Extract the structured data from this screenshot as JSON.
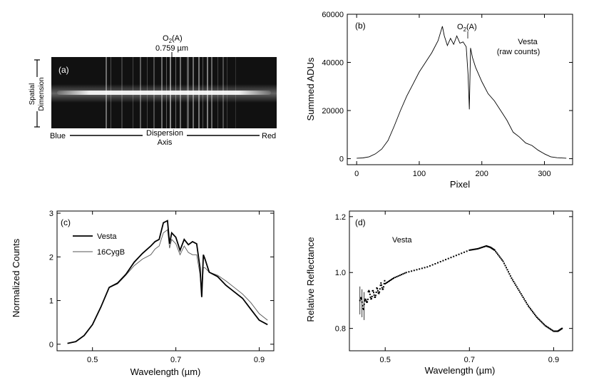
{
  "chart_data": [
    {
      "panel": "(a)",
      "type": "other",
      "image": "2-D spectrum (spatial dimension vs dispersion axis)",
      "labels": {
        "feature": "O2(A)",
        "feature_value": "0.759 µm",
        "left": "Blue",
        "right": "Red",
        "dispersion": [
          "Dispersion",
          "Axis"
        ],
        "spatial": [
          "Spatial",
          "Dimension"
        ]
      },
      "colors": {
        "background": "#111111",
        "trace": "#ffffff",
        "lines": "#bdbdbd"
      }
    },
    {
      "panel": "(b)",
      "type": "line",
      "xlabel": "Pixel",
      "ylabel": "Summed ADUs",
      "xlim": [
        -15,
        345
      ],
      "ylim": [
        -2500,
        60000
      ],
      "xticks": [
        0,
        100,
        200,
        300
      ],
      "yticks": [
        0,
        20000,
        40000,
        60000
      ],
      "annotations": [
        {
          "text": "O2(A)",
          "x": 180
        },
        {
          "text": "Vesta",
          "text2": "(raw counts)"
        }
      ],
      "x": [
        0,
        10,
        20,
        30,
        40,
        50,
        60,
        70,
        80,
        90,
        100,
        110,
        120,
        130,
        137,
        140,
        145,
        150,
        155,
        160,
        165,
        170,
        175,
        178,
        180,
        182,
        185,
        190,
        200,
        210,
        220,
        230,
        240,
        250,
        260,
        270,
        280,
        290,
        300,
        310,
        320,
        335
      ],
      "y": [
        200,
        300,
        800,
        2000,
        4000,
        7500,
        13500,
        20000,
        26000,
        31000,
        36000,
        40000,
        44000,
        49000,
        55000,
        51000,
        47000,
        50000,
        47500,
        51000,
        48000,
        48500,
        46500,
        35000,
        20500,
        46000,
        42000,
        38000,
        32000,
        27000,
        24000,
        20000,
        16000,
        11000,
        9000,
        6500,
        5500,
        3500,
        2000,
        800,
        400,
        200
      ]
    },
    {
      "panel": "(c)",
      "type": "line",
      "xlabel": "Wavelength (µm)",
      "ylabel": "Normalized Counts",
      "xlim": [
        0.415,
        0.935
      ],
      "ylim": [
        -0.15,
        3.05
      ],
      "xticks": [
        0.5,
        0.7,
        0.9
      ],
      "yticks": [
        0,
        1,
        2,
        3
      ],
      "series": [
        {
          "name": "Vesta",
          "color": "#000000",
          "width": 1.8,
          "x": [
            0.44,
            0.46,
            0.48,
            0.5,
            0.52,
            0.54,
            0.56,
            0.58,
            0.6,
            0.62,
            0.64,
            0.65,
            0.66,
            0.67,
            0.68,
            0.685,
            0.69,
            0.7,
            0.71,
            0.72,
            0.73,
            0.74,
            0.75,
            0.758,
            0.762,
            0.766,
            0.77,
            0.78,
            0.8,
            0.82,
            0.84,
            0.86,
            0.88,
            0.9,
            0.92
          ],
          "y": [
            0.02,
            0.06,
            0.2,
            0.45,
            0.85,
            1.3,
            1.4,
            1.6,
            1.88,
            2.08,
            2.25,
            2.35,
            2.4,
            2.78,
            2.83,
            2.3,
            2.55,
            2.45,
            2.15,
            2.4,
            2.28,
            2.35,
            2.3,
            1.75,
            1.08,
            2.05,
            1.95,
            1.65,
            1.55,
            1.35,
            1.2,
            1.05,
            0.8,
            0.55,
            0.45
          ]
        },
        {
          "name": "16CygB",
          "color": "#555555",
          "width": 0.9,
          "x": [
            0.44,
            0.46,
            0.48,
            0.5,
            0.52,
            0.54,
            0.56,
            0.58,
            0.6,
            0.62,
            0.64,
            0.65,
            0.66,
            0.67,
            0.68,
            0.685,
            0.69,
            0.7,
            0.71,
            0.72,
            0.73,
            0.74,
            0.75,
            0.758,
            0.762,
            0.766,
            0.77,
            0.78,
            0.8,
            0.82,
            0.84,
            0.86,
            0.88,
            0.9,
            0.92
          ],
          "y": [
            0.02,
            0.06,
            0.2,
            0.45,
            0.85,
            1.3,
            1.38,
            1.58,
            1.8,
            1.95,
            2.05,
            2.18,
            2.25,
            2.55,
            2.62,
            2.2,
            2.4,
            2.3,
            2.05,
            2.25,
            2.1,
            2.05,
            2.05,
            1.6,
            1.15,
            1.75,
            1.75,
            1.65,
            1.58,
            1.45,
            1.3,
            1.15,
            0.95,
            0.7,
            0.55
          ]
        }
      ]
    },
    {
      "panel": "(d)",
      "type": "scatter",
      "xlabel": "Wavelength (µm)",
      "ylabel": "Relative Reflectance",
      "xlim": [
        0.415,
        0.945
      ],
      "ylim": [
        0.72,
        1.22
      ],
      "xticks": [
        0.5,
        0.7,
        0.9
      ],
      "yticks": [
        0.8,
        1.0,
        1.2
      ],
      "annotation": "Vesta",
      "x": [
        0.44,
        0.45,
        0.46,
        0.47,
        0.48,
        0.49,
        0.5,
        0.52,
        0.55,
        0.6,
        0.65,
        0.7,
        0.72,
        0.74,
        0.75,
        0.76,
        0.78,
        0.8,
        0.82,
        0.84,
        0.86,
        0.88,
        0.9,
        0.91,
        0.92
      ],
      "y": [
        0.9,
        0.88,
        0.92,
        0.92,
        0.93,
        0.95,
        0.96,
        0.98,
        1.0,
        1.02,
        1.05,
        1.08,
        1.085,
        1.095,
        1.09,
        1.08,
        1.04,
        0.98,
        0.93,
        0.88,
        0.84,
        0.81,
        0.79,
        0.79,
        0.8
      ]
    }
  ]
}
